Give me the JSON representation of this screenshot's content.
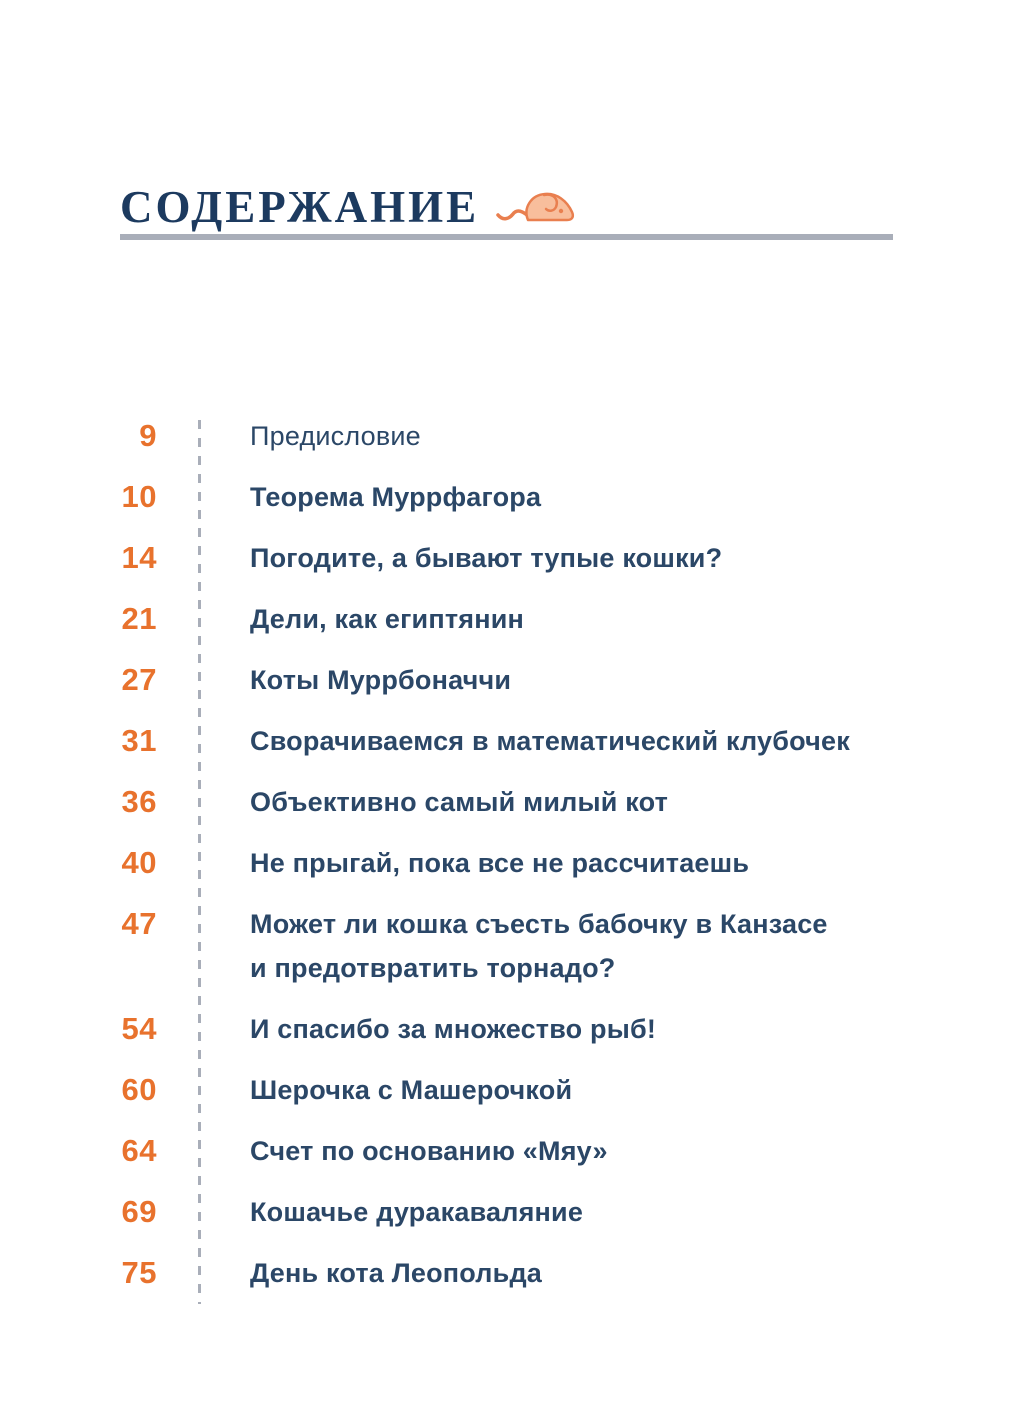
{
  "header": {
    "title": "СОДЕРЖАНИЕ",
    "icon": "mouse-icon"
  },
  "colors": {
    "accent_orange": "#E8722D",
    "title_navy": "#1C3A5F",
    "entry_navy": "#2B4767",
    "divider_gray": "#A9AEB9",
    "mouse_fill": "#F8BE9C",
    "mouse_stroke": "#E97F4F"
  },
  "toc": {
    "entries": [
      {
        "page": "9",
        "lines": [
          "Предисловие"
        ],
        "style": "regular"
      },
      {
        "page": "10",
        "lines": [
          "Теорема Муррфагора"
        ],
        "style": "bold"
      },
      {
        "page": "14",
        "lines": [
          "Погодите, а бывают тупые кошки?"
        ],
        "style": "bold"
      },
      {
        "page": "21",
        "lines": [
          "Дели, как египтянин"
        ],
        "style": "bold"
      },
      {
        "page": "27",
        "lines": [
          "Коты Муррбоначчи"
        ],
        "style": "bold"
      },
      {
        "page": "31",
        "lines": [
          "Сворачиваемся в математический клубочек"
        ],
        "style": "bold"
      },
      {
        "page": "36",
        "lines": [
          "Объективно самый милый кот"
        ],
        "style": "bold"
      },
      {
        "page": "40",
        "lines": [
          "Не прыгай, пока все не рассчитаешь"
        ],
        "style": "bold"
      },
      {
        "page": "47",
        "lines": [
          "Может ли кошка съесть бабочку в Канзасе",
          "и предотвратить торнадо?"
        ],
        "style": "bold"
      },
      {
        "page": "54",
        "lines": [
          "И спасибо за множество рыб!"
        ],
        "style": "bold"
      },
      {
        "page": "60",
        "lines": [
          "Шерочка с Машерочкой"
        ],
        "style": "bold"
      },
      {
        "page": "64",
        "lines": [
          "Счет по основанию «Мяу»"
        ],
        "style": "bold"
      },
      {
        "page": "69",
        "lines": [
          "Кошачье дуракаваляние"
        ],
        "style": "bold"
      },
      {
        "page": "75",
        "lines": [
          "День кота Леопольда"
        ],
        "style": "bold"
      }
    ]
  }
}
